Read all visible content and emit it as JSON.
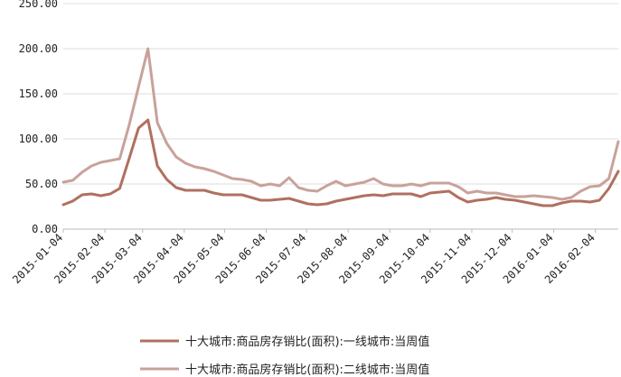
{
  "chart_data": {
    "type": "line",
    "title": "",
    "xlabel": "",
    "ylabel": "",
    "ylim": [
      0,
      250
    ],
    "yticks": [
      "0.00",
      "50.00",
      "100.00",
      "150.00",
      "200.00",
      "250.00"
    ],
    "xticks": [
      "2015-01-04",
      "2015-02-04",
      "2015-03-04",
      "2015-04-04",
      "2015-05-04",
      "2015-06-04",
      "2015-07-04",
      "2015-08-04",
      "2015-09-04",
      "2015-10-04",
      "2015-11-04",
      "2015-12-04",
      "2016-01-04",
      "2016-02-04"
    ],
    "grid": "horizontal",
    "legend_position": "bottom",
    "x": [
      "2015-01-04",
      "2015-01-11",
      "2015-01-18",
      "2015-01-25",
      "2015-02-01",
      "2015-02-08",
      "2015-02-15",
      "2015-02-22",
      "2015-03-01",
      "2015-03-08",
      "2015-03-15",
      "2015-03-22",
      "2015-03-29",
      "2015-04-05",
      "2015-04-12",
      "2015-04-19",
      "2015-04-26",
      "2015-05-03",
      "2015-05-10",
      "2015-05-17",
      "2015-05-24",
      "2015-05-31",
      "2015-06-07",
      "2015-06-14",
      "2015-06-21",
      "2015-06-28",
      "2015-07-05",
      "2015-07-12",
      "2015-07-19",
      "2015-07-26",
      "2015-08-02",
      "2015-08-09",
      "2015-08-16",
      "2015-08-23",
      "2015-08-30",
      "2015-09-06",
      "2015-09-13",
      "2015-09-20",
      "2015-09-27",
      "2015-10-04",
      "2015-10-11",
      "2015-10-18",
      "2015-10-25",
      "2015-11-01",
      "2015-11-08",
      "2015-11-15",
      "2015-11-22",
      "2015-11-29",
      "2015-12-06",
      "2015-12-13",
      "2015-12-20",
      "2015-12-27",
      "2016-01-03",
      "2016-01-10",
      "2016-01-17",
      "2016-01-24",
      "2016-01-31",
      "2016-02-07",
      "2016-02-14",
      "2016-02-21"
    ],
    "series": [
      {
        "name": "十大城市:商品房存销比(面积):一线城市:当周值",
        "color": "#b07060",
        "values": [
          27,
          31,
          38,
          39,
          37,
          39,
          45,
          78,
          112,
          121,
          70,
          55,
          46,
          43,
          43,
          43,
          40,
          38,
          38,
          38,
          35,
          32,
          32,
          33,
          34,
          31,
          28,
          27,
          28,
          31,
          33,
          35,
          37,
          38,
          37,
          39,
          39,
          39,
          36,
          40,
          41,
          42,
          35,
          30,
          32,
          33,
          35,
          33,
          32,
          30,
          28,
          26,
          26,
          29,
          31,
          31,
          30,
          32,
          45,
          64
        ]
      },
      {
        "name": "十大城市:商品房存销比(面积):二线城市:当周值",
        "color": "#c8a29a",
        "values": [
          52,
          54,
          63,
          70,
          74,
          76,
          78,
          115,
          158,
          200,
          118,
          95,
          80,
          73,
          69,
          67,
          64,
          60,
          56,
          55,
          53,
          48,
          50,
          48,
          57,
          46,
          43,
          42,
          48,
          53,
          48,
          50,
          52,
          56,
          50,
          48,
          48,
          50,
          48,
          51,
          51,
          51,
          47,
          40,
          42,
          40,
          40,
          38,
          36,
          36,
          37,
          36,
          35,
          33,
          35,
          42,
          47,
          48,
          56,
          97
        ]
      }
    ]
  }
}
